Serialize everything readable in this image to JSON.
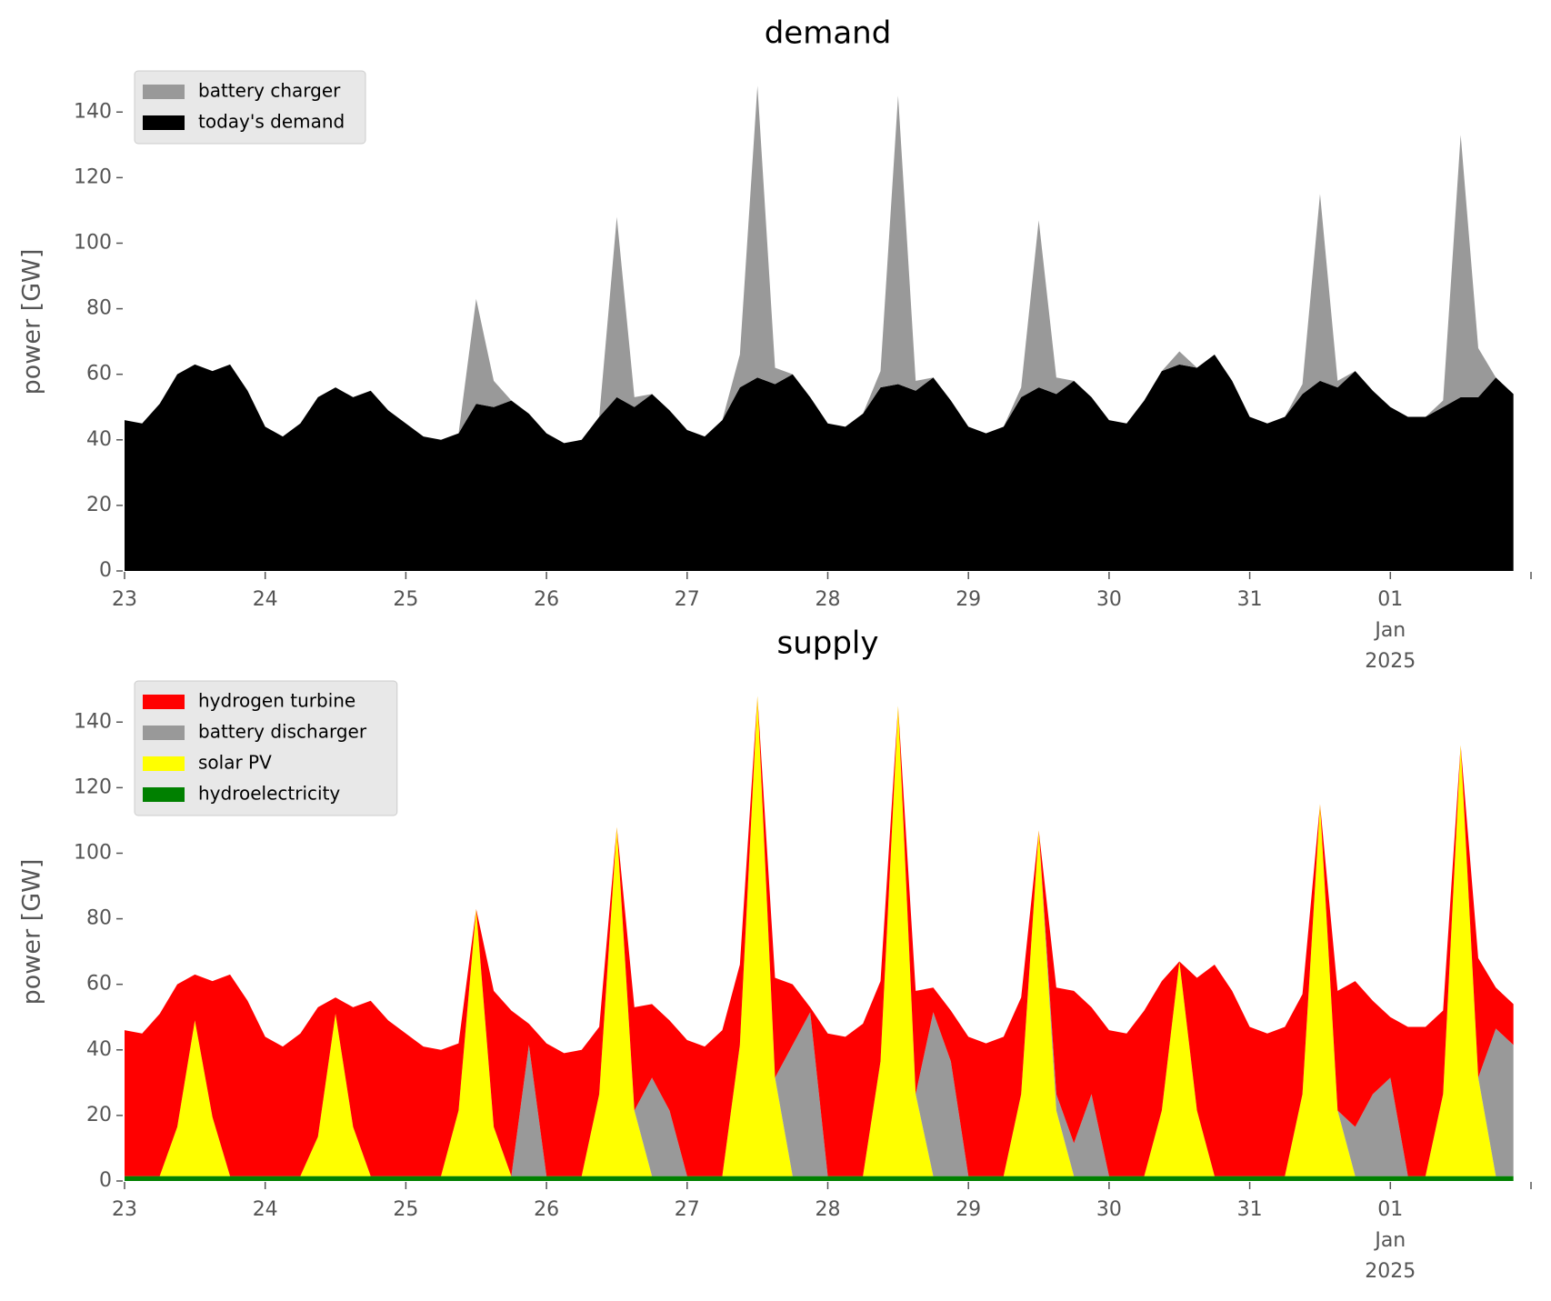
{
  "chart_data": [
    {
      "type": "area",
      "title": "demand",
      "y_label": "power [GW]",
      "categories": [
        "23",
        null,
        null,
        null,
        null,
        null,
        null,
        null,
        "24",
        null,
        null,
        null,
        null,
        null,
        null,
        null,
        "25",
        null,
        null,
        null,
        null,
        null,
        null,
        null,
        "26",
        null,
        null,
        null,
        null,
        null,
        null,
        null,
        "27",
        null,
        null,
        null,
        null,
        null,
        null,
        null,
        "28",
        null,
        null,
        null,
        null,
        null,
        null,
        null,
        "29",
        null,
        null,
        null,
        null,
        null,
        null,
        null,
        "30",
        null,
        null,
        null,
        null,
        null,
        null,
        null,
        "31",
        null,
        null,
        null,
        null,
        null,
        null,
        null,
        "01",
        null,
        null,
        null,
        null,
        null,
        null,
        null
      ],
      "x_date_note": [
        "Jan",
        "2025"
      ],
      "ylim": [
        0,
        152
      ],
      "yticks": [
        0,
        20,
        40,
        60,
        80,
        100,
        120,
        140
      ],
      "legend": "upper left",
      "series": [
        {
          "name": "battery charger",
          "color": "#999999",
          "values": [
            0,
            0,
            0,
            0,
            0,
            0,
            0,
            0,
            0,
            0,
            0,
            0,
            0,
            0,
            0,
            0,
            0,
            0,
            0,
            0,
            32,
            8,
            0,
            0,
            0,
            0,
            0,
            0,
            55,
            3,
            0,
            0,
            0,
            0,
            0,
            10,
            89,
            5,
            0,
            0,
            0,
            0,
            0,
            5,
            88,
            3,
            0,
            0,
            0,
            0,
            0,
            3,
            51,
            5,
            0,
            0,
            0,
            0,
            0,
            0,
            4,
            0,
            0,
            0,
            0,
            0,
            0,
            3,
            57,
            2,
            0,
            0,
            0,
            0,
            0,
            2,
            80,
            15,
            0,
            0
          ]
        },
        {
          "name": "today's demand",
          "color": "#000000",
          "values": [
            46,
            45,
            51,
            60,
            63,
            61,
            63,
            55,
            44,
            41,
            45,
            53,
            56,
            53,
            55,
            49,
            45,
            41,
            40,
            42,
            51,
            50,
            52,
            48,
            42,
            39,
            40,
            47,
            53,
            50,
            54,
            49,
            43,
            41,
            46,
            56,
            59,
            57,
            60,
            53,
            45,
            44,
            48,
            56,
            57,
            55,
            59,
            52,
            44,
            42,
            44,
            53,
            56,
            54,
            58,
            53,
            46,
            45,
            52,
            61,
            63,
            62,
            66,
            58,
            47,
            45,
            47,
            54,
            58,
            56,
            61,
            55,
            50,
            47,
            47,
            50,
            53,
            53,
            59,
            54
          ]
        }
      ]
    },
    {
      "type": "area",
      "title": "supply",
      "y_label": "power [GW]",
      "categories": [
        "23",
        null,
        null,
        null,
        null,
        null,
        null,
        null,
        "24",
        null,
        null,
        null,
        null,
        null,
        null,
        null,
        "25",
        null,
        null,
        null,
        null,
        null,
        null,
        null,
        "26",
        null,
        null,
        null,
        null,
        null,
        null,
        null,
        "27",
        null,
        null,
        null,
        null,
        null,
        null,
        null,
        "28",
        null,
        null,
        null,
        null,
        null,
        null,
        null,
        "29",
        null,
        null,
        null,
        null,
        null,
        null,
        null,
        "30",
        null,
        null,
        null,
        null,
        null,
        null,
        null,
        "31",
        null,
        null,
        null,
        null,
        null,
        null,
        null,
        "01",
        null,
        null,
        null,
        null,
        null,
        null,
        null
      ],
      "x_date_note": [
        "Jan",
        "2025"
      ],
      "ylim": [
        0,
        152
      ],
      "yticks": [
        0,
        20,
        40,
        60,
        80,
        100,
        120,
        140
      ],
      "legend": "upper left",
      "series": [
        {
          "name": "hydrogen turbine",
          "color": "#ff0000",
          "values": [
            44.5,
            43.5,
            49.5,
            43.5,
            14,
            41.5,
            61.5,
            53.5,
            42.5,
            39.5,
            43.5,
            39.5,
            5,
            36.5,
            53.5,
            47.5,
            43.5,
            39.5,
            38.5,
            20.5,
            0,
            41.5,
            50.5,
            6.5,
            40.5,
            37.5,
            38.5,
            20.5,
            0,
            31.5,
            22.5,
            27.5,
            41.5,
            39.5,
            44.5,
            24.5,
            0,
            30.5,
            18.5,
            1.5,
            43.5,
            42.5,
            46.5,
            24.5,
            0,
            31.5,
            7.5,
            15.5,
            42.5,
            40.5,
            42.5,
            29.5,
            0,
            32.5,
            46.5,
            26.5,
            44.5,
            43.5,
            50.5,
            39.5,
            0,
            40.5,
            64.5,
            56.5,
            45.5,
            43.5,
            45.5,
            30.5,
            0,
            36.5,
            44.5,
            28.5,
            18.5,
            45.5,
            45.5,
            25.5,
            0,
            36.5,
            12.5,
            12.5
          ]
        },
        {
          "name": "battery discharger",
          "color": "#999999",
          "values": [
            0,
            0,
            0,
            0,
            0,
            0,
            0,
            0,
            0,
            0,
            0,
            0,
            0,
            0,
            0,
            0,
            0,
            0,
            0,
            0,
            0,
            0,
            0,
            40,
            0,
            0,
            0,
            0,
            0,
            0,
            30,
            20,
            0,
            0,
            0,
            0,
            0,
            0,
            40,
            50,
            0,
            0,
            0,
            0,
            0,
            0,
            50,
            35,
            0,
            0,
            0,
            0,
            0,
            5,
            10,
            25,
            0,
            0,
            0,
            0,
            0,
            0,
            0,
            0,
            0,
            0,
            0,
            0,
            0,
            0,
            15,
            25,
            30,
            0,
            0,
            0,
            0,
            0,
            45,
            40
          ]
        },
        {
          "name": "solar PV",
          "color": "#ffff00",
          "values": [
            0,
            0,
            0,
            15,
            47.5,
            18,
            0,
            0,
            0,
            0,
            0,
            12,
            49.5,
            15,
            0,
            0,
            0,
            0,
            0,
            20,
            81.5,
            15,
            0,
            0,
            0,
            0,
            0,
            25,
            106.5,
            20,
            0,
            0,
            0,
            0,
            0,
            40,
            146.5,
            30,
            0,
            0,
            0,
            0,
            0,
            35,
            143.5,
            25,
            0,
            0,
            0,
            0,
            0,
            25,
            105.5,
            20,
            0,
            0,
            0,
            0,
            0,
            20,
            65.5,
            20,
            0,
            0,
            0,
            0,
            0,
            25,
            113.5,
            20,
            0,
            0,
            0,
            0,
            0,
            25,
            131.5,
            30,
            0,
            0
          ]
        },
        {
          "name": "hydroelectricity",
          "color": "#008000",
          "values": [
            1.5,
            1.5,
            1.5,
            1.5,
            1.5,
            1.5,
            1.5,
            1.5,
            1.5,
            1.5,
            1.5,
            1.5,
            1.5,
            1.5,
            1.5,
            1.5,
            1.5,
            1.5,
            1.5,
            1.5,
            1.5,
            1.5,
            1.5,
            1.5,
            1.5,
            1.5,
            1.5,
            1.5,
            1.5,
            1.5,
            1.5,
            1.5,
            1.5,
            1.5,
            1.5,
            1.5,
            1.5,
            1.5,
            1.5,
            1.5,
            1.5,
            1.5,
            1.5,
            1.5,
            1.5,
            1.5,
            1.5,
            1.5,
            1.5,
            1.5,
            1.5,
            1.5,
            1.5,
            1.5,
            1.5,
            1.5,
            1.5,
            1.5,
            1.5,
            1.5,
            1.5,
            1.5,
            1.5,
            1.5,
            1.5,
            1.5,
            1.5,
            1.5,
            1.5,
            1.5,
            1.5,
            1.5,
            1.5,
            1.5,
            1.5,
            1.5,
            1.5,
            1.5,
            1.5,
            1.5
          ]
        }
      ]
    }
  ]
}
